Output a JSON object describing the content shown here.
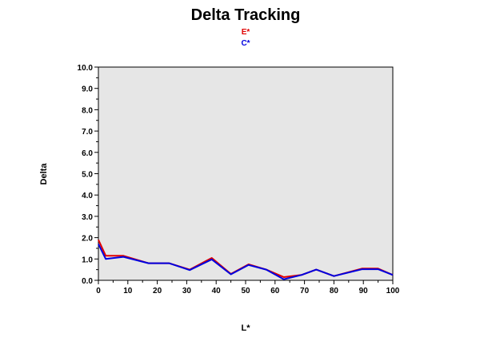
{
  "chart_data": {
    "type": "line",
    "title": "Delta Tracking",
    "xlabel": "L*",
    "ylabel": "Delta",
    "xlim": [
      0,
      100
    ],
    "ylim": [
      0,
      10
    ],
    "x_ticks": [
      "0",
      "10",
      "20",
      "30",
      "40",
      "50",
      "60",
      "70",
      "80",
      "90",
      "100"
    ],
    "y_ticks": [
      "0.0",
      "1.0",
      "2.0",
      "3.0",
      "4.0",
      "5.0",
      "6.0",
      "7.0",
      "8.0",
      "9.0",
      "10.0"
    ],
    "grid": false,
    "legend_position": "top-center",
    "plot_background": "#e6e6e6",
    "series": [
      {
        "name": "E*",
        "color": "#e00000",
        "x": [
          0,
          2.5,
          8.5,
          17,
          24,
          31,
          38.5,
          45,
          51,
          57,
          63,
          69,
          74,
          80,
          89.5,
          95,
          100
        ],
        "values": [
          1.9,
          1.15,
          1.15,
          0.8,
          0.8,
          0.5,
          1.05,
          0.3,
          0.75,
          0.5,
          0.15,
          0.25,
          0.5,
          0.2,
          0.55,
          0.55,
          0.25
        ]
      },
      {
        "name": "C*",
        "color": "#0000e0",
        "x": [
          0,
          2.5,
          8.5,
          17,
          24,
          31,
          38.5,
          45,
          51,
          57,
          63,
          69,
          74,
          80,
          89.5,
          95,
          100
        ],
        "values": [
          1.7,
          1.0,
          1.1,
          0.8,
          0.8,
          0.48,
          0.98,
          0.28,
          0.72,
          0.5,
          0.05,
          0.25,
          0.5,
          0.2,
          0.52,
          0.52,
          0.25
        ]
      }
    ]
  }
}
